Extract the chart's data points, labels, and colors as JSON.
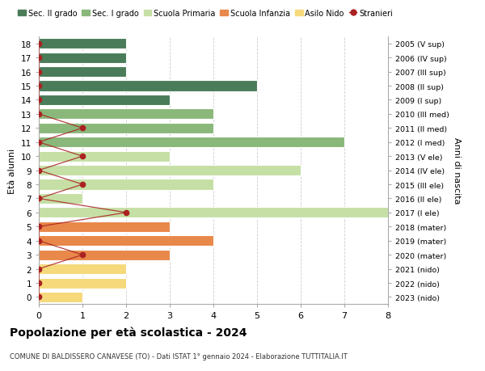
{
  "ages": [
    18,
    17,
    16,
    15,
    14,
    13,
    12,
    11,
    10,
    9,
    8,
    7,
    6,
    5,
    4,
    3,
    2,
    1,
    0
  ],
  "years": [
    "2005 (V sup)",
    "2006 (IV sup)",
    "2007 (III sup)",
    "2008 (II sup)",
    "2009 (I sup)",
    "2010 (III med)",
    "2011 (II med)",
    "2012 (I med)",
    "2013 (V ele)",
    "2014 (IV ele)",
    "2015 (III ele)",
    "2016 (II ele)",
    "2017 (I ele)",
    "2018 (mater)",
    "2019 (mater)",
    "2020 (mater)",
    "2021 (nido)",
    "2022 (nido)",
    "2023 (nido)"
  ],
  "values": [
    2,
    2,
    2,
    5,
    3,
    4,
    4,
    7,
    3,
    6,
    4,
    1,
    8,
    3,
    4,
    3,
    2,
    2,
    1
  ],
  "stranieri_x": [
    0,
    0,
    0,
    0,
    0,
    0,
    1,
    0,
    1,
    0,
    1,
    0,
    2,
    0,
    0,
    1,
    0,
    0,
    0
  ],
  "bar_colors": [
    "#4a7c59",
    "#4a7c59",
    "#4a7c59",
    "#4a7c59",
    "#4a7c59",
    "#8ab87a",
    "#8ab87a",
    "#8ab87a",
    "#c5dfa5",
    "#c5dfa5",
    "#c5dfa5",
    "#c5dfa5",
    "#c5dfa5",
    "#e8884a",
    "#e8884a",
    "#e8884a",
    "#f5d97a",
    "#f5d97a",
    "#f5d97a"
  ],
  "color_sec2": "#4a7c59",
  "color_sec1": "#8ab87a",
  "color_prim": "#c5dfa5",
  "color_inf": "#e8884a",
  "color_nido": "#f5d97a",
  "color_stranieri": "#aa2222",
  "xlim": [
    0,
    8
  ],
  "ylim": [
    -0.5,
    18.5
  ],
  "ylabel_left": "Età alunni",
  "ylabel_right": "Anni di nascita",
  "title": "Popolazione per età scolastica - 2024",
  "subtitle": "COMUNE DI BALDISSERO CANAVESE (TO) - Dati ISTAT 1° gennaio 2024 - Elaborazione TUTTITALIA.IT",
  "legend_labels": [
    "Sec. II grado",
    "Sec. I grado",
    "Scuola Primaria",
    "Scuola Infanzia",
    "Asilo Nido",
    "Stranieri"
  ],
  "bg_color": "#ffffff",
  "bar_height": 0.75
}
